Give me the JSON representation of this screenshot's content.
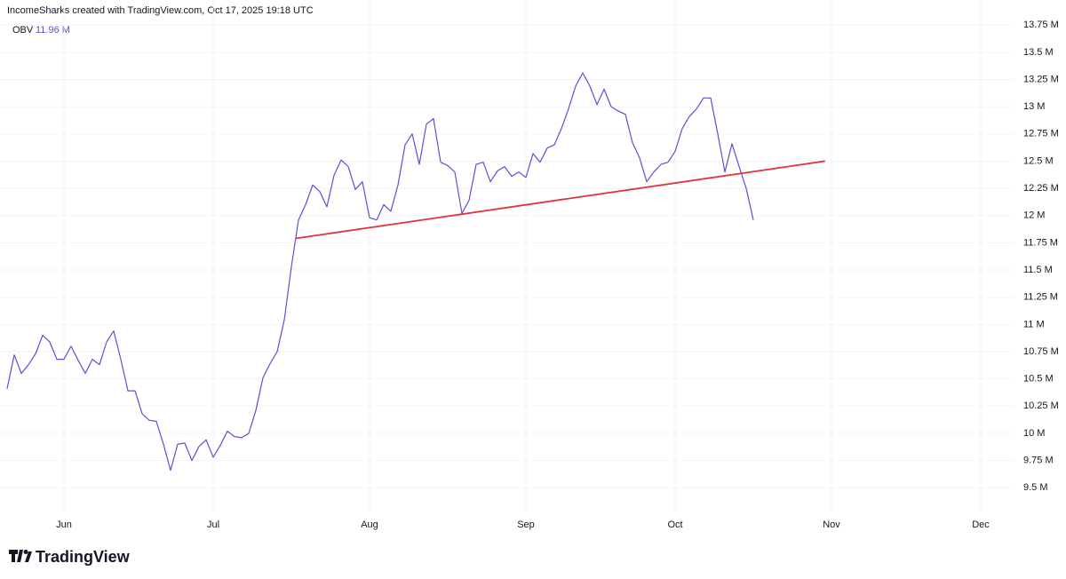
{
  "header": "IncomeSharks created with TradingView.com, Oct 17, 2025 19:18 UTC",
  "brand": "TradingView",
  "chart_data": {
    "type": "line",
    "legend_value": {
      "value": 11.96,
      "label": "11.96 M"
    },
    "categories": [
      null,
      null,
      null,
      null,
      null,
      null,
      null,
      null,
      "Jun",
      null,
      null,
      null,
      null,
      null,
      null,
      null,
      null,
      null,
      null,
      null,
      null,
      null,
      null,
      null,
      null,
      null,
      null,
      null,
      null,
      "Jul",
      null,
      null,
      null,
      null,
      null,
      null,
      null,
      null,
      null,
      null,
      null,
      null,
      null,
      null,
      null,
      null,
      null,
      null,
      null,
      null,
      null,
      "Aug",
      null,
      null,
      null,
      null,
      null,
      null,
      null,
      null,
      null,
      null,
      null,
      null,
      null,
      null,
      null,
      null,
      null,
      null,
      null,
      null,
      null,
      "Sep",
      null,
      null,
      null,
      null,
      null,
      null,
      null,
      null,
      null,
      null,
      null,
      null,
      null,
      null,
      null,
      null,
      null,
      null,
      null,
      null,
      "Oct",
      null,
      null,
      null,
      null,
      null,
      null,
      null,
      null,
      null,
      null,
      null,
      null,
      null,
      null,
      null,
      null,
      null,
      null,
      null,
      null,
      null,
      "Nov",
      null,
      null,
      null,
      null,
      null,
      null,
      null,
      null,
      null,
      null,
      null,
      null,
      null,
      null,
      null,
      null,
      null,
      null,
      null,
      null,
      "Dec",
      null,
      null,
      null,
      null
    ],
    "series": [
      {
        "name": "OBV",
        "color": "#5b50d6",
        "values": [
          10.41,
          10.72,
          10.55,
          10.63,
          10.73,
          10.9,
          10.84,
          10.68,
          10.68,
          10.8,
          10.67,
          10.55,
          10.68,
          10.63,
          10.84,
          10.94,
          10.68,
          10.39,
          10.39,
          10.18,
          10.12,
          10.11,
          9.9,
          9.66,
          9.9,
          9.91,
          9.75,
          9.88,
          9.94,
          9.78,
          9.89,
          10.02,
          9.97,
          9.96,
          10.0,
          10.21,
          10.51,
          10.64,
          10.75,
          11.04,
          11.53,
          11.96,
          12.1,
          12.28,
          12.22,
          12.08,
          12.37,
          12.51,
          12.45,
          12.24,
          12.31,
          11.98,
          11.96,
          12.1,
          12.04,
          12.28,
          12.65,
          12.75,
          12.47,
          12.84,
          12.89,
          12.49,
          12.46,
          12.4,
          12.02,
          12.14,
          12.47,
          12.49,
          12.31,
          12.41,
          12.45,
          12.36,
          12.4,
          12.35,
          12.57,
          12.49,
          12.62,
          12.65,
          12.8,
          12.98,
          13.19,
          13.31,
          13.19,
          13.02,
          13.16,
          13.0,
          12.96,
          12.93,
          12.67,
          12.53,
          12.31,
          12.4,
          12.47,
          12.49,
          12.59,
          12.8,
          12.91,
          12.98,
          13.08,
          13.08,
          12.75,
          12.4,
          12.66,
          12.45,
          12.25,
          11.96,
          null,
          null,
          null,
          null,
          null,
          null,
          null,
          null,
          null,
          null,
          null,
          null,
          null,
          null,
          null,
          null,
          null,
          null,
          null,
          null,
          null,
          null,
          null,
          null,
          null,
          null,
          null,
          null,
          null,
          null,
          null,
          null,
          null,
          null,
          null,
          null
        ]
      }
    ],
    "trendline": {
      "color": "#e0333c",
      "x": [
        40.6,
        115.1
      ],
      "values": [
        11.79,
        12.5
      ]
    },
    "ylim": [
      9.29,
      13.98
    ],
    "yticks": [
      {
        "value": 13.75,
        "label": "13.75 M"
      },
      {
        "value": 13.5,
        "label": "13.5 M"
      },
      {
        "value": 13.25,
        "label": "13.25 M"
      },
      {
        "value": 13,
        "label": "13 M"
      },
      {
        "value": 12.75,
        "label": "12.75 M"
      },
      {
        "value": 12.5,
        "label": "12.5 M"
      },
      {
        "value": 12.25,
        "label": "12.25 M"
      },
      {
        "value": 12,
        "label": "12 M"
      },
      {
        "value": 11.75,
        "label": "11.75 M"
      },
      {
        "value": 11.5,
        "label": "11.5 M"
      },
      {
        "value": 11.25,
        "label": "11.25 M"
      },
      {
        "value": 11,
        "label": "11 M"
      },
      {
        "value": 10.75,
        "label": "10.75 M"
      },
      {
        "value": 10.5,
        "label": "10.5 M"
      },
      {
        "value": 10.25,
        "label": "10.25 M"
      },
      {
        "value": 10,
        "label": "10 M"
      },
      {
        "value": 9.75,
        "label": "9.75 M"
      },
      {
        "value": 9.5,
        "label": "9.5 M"
      }
    ],
    "grid": true
  }
}
